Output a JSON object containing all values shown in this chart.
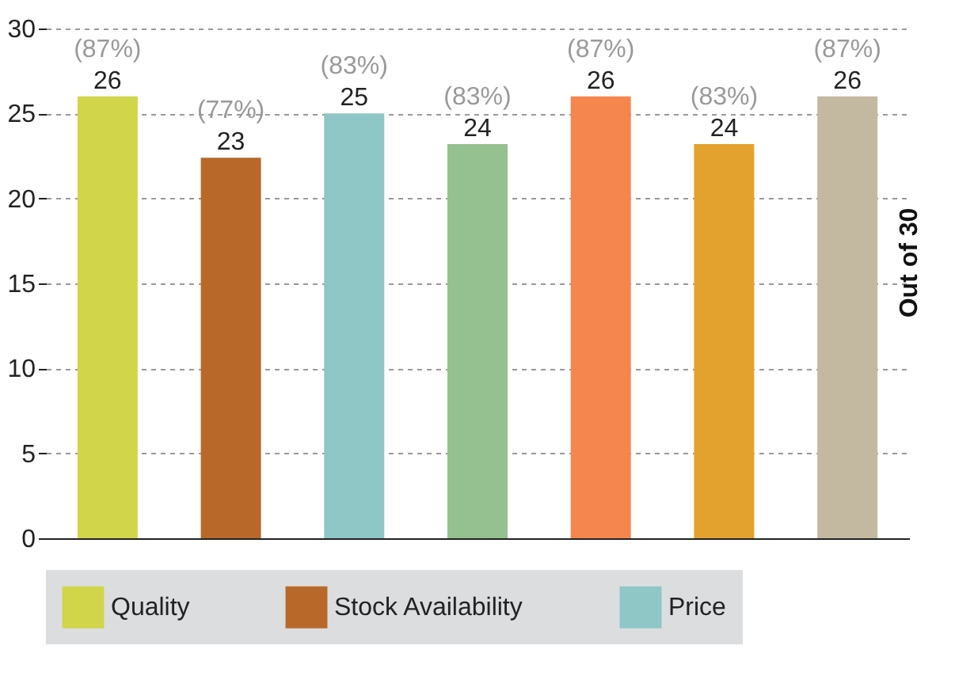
{
  "chart_data": {
    "type": "bar",
    "categories": [
      null,
      null,
      null,
      null,
      null,
      null,
      null
    ],
    "series": [
      {
        "name": "Quality",
        "color": "#d1d54a",
        "values": [
          26,
          null,
          null,
          null,
          null,
          null,
          null
        ]
      },
      {
        "name": "Stock Availability",
        "color": "#b8692a",
        "values": [
          null,
          22.4,
          null,
          null,
          null,
          null,
          null
        ]
      },
      {
        "name": "Price",
        "color": "#8fc6c6",
        "values": [
          null,
          null,
          25,
          null,
          null,
          null,
          null
        ]
      },
      {
        "color": "#95c08f",
        "values": [
          null,
          null,
          null,
          23.2,
          null,
          null,
          null
        ]
      },
      {
        "color": "#f5864e",
        "values": [
          null,
          null,
          null,
          null,
          26,
          null,
          null
        ]
      },
      {
        "color": "#e3a22e",
        "values": [
          null,
          null,
          null,
          null,
          null,
          23.2,
          null
        ]
      },
      {
        "color": "#c3b9a0",
        "values": [
          null,
          null,
          null,
          null,
          null,
          null,
          26
        ]
      }
    ],
    "value_labels": [
      "(87%)\n26",
      "(77%)\n23",
      "(83%)\n25",
      "(83%)\n24",
      "(87%)\n26",
      "(83%)\n24",
      "(87%)\n26"
    ],
    "ylim": [
      0,
      30
    ],
    "yticks": [
      0,
      5,
      10,
      15,
      20,
      25,
      30
    ],
    "grid": "y",
    "legend": "bottom",
    "annotations": [
      "Out of 30"
    ]
  }
}
